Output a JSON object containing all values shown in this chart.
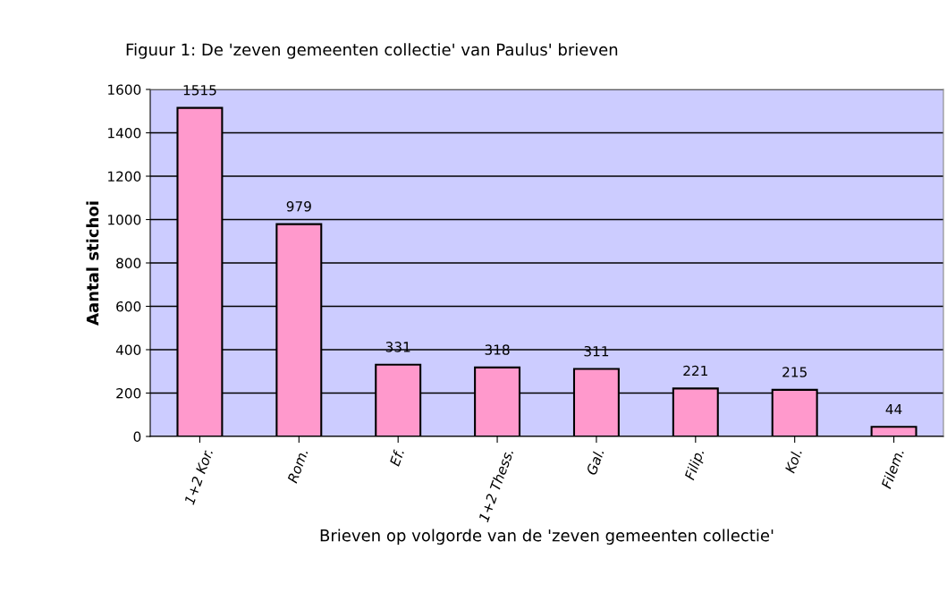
{
  "chart_data": {
    "type": "bar",
    "title": "Figuur 1: De 'zeven gemeenten collectie' van Paulus' brieven",
    "xlabel": "Brieven op volgorde van de 'zeven gemeenten collectie'",
    "ylabel": "Aantal stichoi",
    "categories": [
      "1+2 Kor.",
      "Rom.",
      "Ef.",
      "1+2 Thess.",
      "Gal.",
      "Filip.",
      "Kol.",
      "Filem."
    ],
    "values": [
      1515,
      979,
      331,
      318,
      311,
      221,
      215,
      44
    ],
    "color": "#ff99cc",
    "ylim": [
      0,
      1600
    ],
    "yticks": [
      0,
      200,
      400,
      600,
      800,
      1000,
      1200,
      1400,
      1600
    ],
    "grid": "y",
    "data_labels": true
  }
}
